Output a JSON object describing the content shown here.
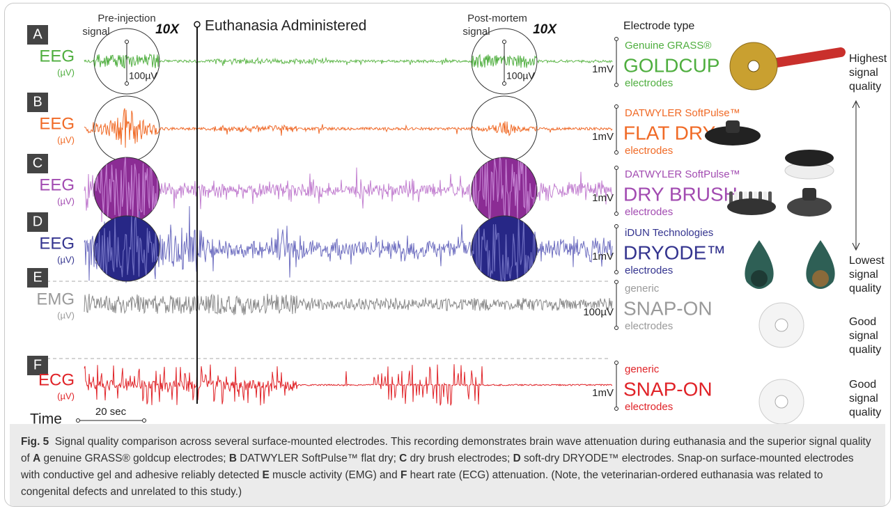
{
  "headers": {
    "euthanasia": "Euthanasia Administered",
    "electrode_type": "Electrode type",
    "time": "Time",
    "time_scale": "20 sec"
  },
  "insets": {
    "pre": {
      "label": [
        "Pre-injection",
        "signal"
      ],
      "zoom": "10X",
      "scale": "100µV"
    },
    "post": {
      "label": [
        "Post-mortem",
        "signal"
      ],
      "zoom": "10X",
      "scale": "100µV"
    }
  },
  "panels": [
    {
      "letter": "A",
      "signal": "EEG",
      "unit": "(µV)",
      "scale": "1mV",
      "maker": "Genuine GRASS®",
      "electrode": "GOLDCUP",
      "suffix": "electrodes",
      "color": "#4fae3f",
      "trace": "#62b84e"
    },
    {
      "letter": "B",
      "signal": "EEG",
      "unit": "(µV)",
      "scale": "1mV",
      "maker": "DATWYLER SoftPulse™",
      "electrode": "FLAT DRY",
      "suffix": "electrodes",
      "color": "#f06a26",
      "trace": "#ef6a2a"
    },
    {
      "letter": "C",
      "signal": "EEG",
      "unit": "(µV)",
      "scale": "1mV",
      "maker": "DATWYLER SoftPulse™",
      "electrode": "DRY BRUSH",
      "suffix": "electrodes",
      "color": "#a24bb1",
      "trace": "#c27fd0"
    },
    {
      "letter": "D",
      "signal": "EEG",
      "unit": "(µV)",
      "scale": "1mV",
      "maker": "iDUN Technologies",
      "electrode": "DRYODE™",
      "suffix": "electrodes",
      "color": "#34348f",
      "trace": "#6e6ec0"
    },
    {
      "letter": "E",
      "signal": "EMG",
      "unit": "(µV)",
      "scale": "100µV",
      "maker": "generic",
      "electrode": "SNAP-ON",
      "suffix": "electrodes",
      "color": "#9a9a9a",
      "trace": "#8a8a8a"
    },
    {
      "letter": "F",
      "signal": "ECG",
      "unit": "(µV)",
      "scale": "1mV",
      "maker": "generic",
      "electrode": "SNAP-ON",
      "suffix": "electrodes",
      "color": "#e02328",
      "trace": "#e02328"
    }
  ],
  "quality_labels": [
    [
      "Highest",
      "signal",
      "quality"
    ],
    [
      "Lowest",
      "signal",
      "quality"
    ],
    [
      "Good",
      "signal",
      "quality"
    ],
    [
      "Good",
      "signal",
      "quality"
    ]
  ],
  "caption": [
    {
      "text": "Fig. 5",
      "bold": true
    },
    {
      "text": "  Signal quality comparison across several surface-mounted electrodes. This recording demonstrates brain wave attenuation during euthanasia and the superior signal quality of ",
      "bold": false
    },
    {
      "text": "A",
      "bold": true
    },
    {
      "text": " genuine GRASS® goldcup electrodes; ",
      "bold": false
    },
    {
      "text": "B",
      "bold": true
    },
    {
      "text": " DATWYLER SoftPulse™ flat dry; ",
      "bold": false
    },
    {
      "text": "C",
      "bold": true
    },
    {
      "text": " dry brush electrodes; ",
      "bold": false
    },
    {
      "text": "D",
      "bold": true
    },
    {
      "text": " soft-dry DRYODE™ electrodes. Snap-on surface-mounted electrodes with conductive gel and adhesive reliably detected ",
      "bold": false
    },
    {
      "text": "E",
      "bold": true
    },
    {
      "text": " muscle activity (EMG) and ",
      "bold": false
    },
    {
      "text": "F",
      "bold": true
    },
    {
      "text": " heart rate (ECG) attenuation. (Note, the veterinarian-ordered euthanasia was related to congenital defects and unrelated to this study.)",
      "bold": false
    }
  ]
}
